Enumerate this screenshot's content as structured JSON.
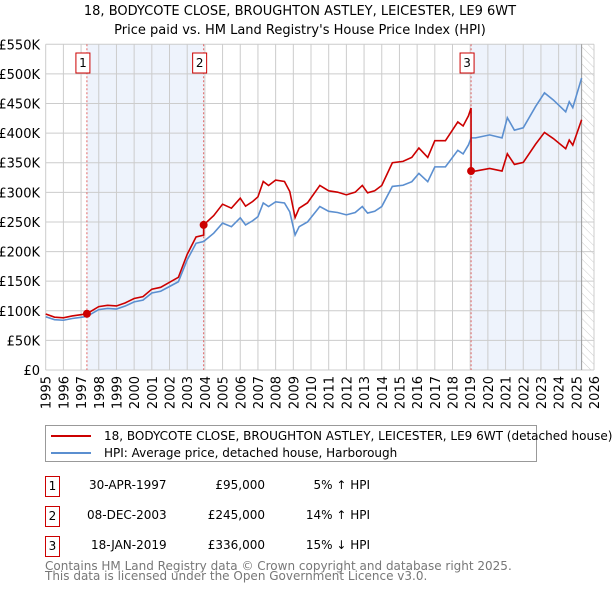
{
  "chart_data": {
    "type": "line",
    "title": "18, BODYCOTE CLOSE, BROUGHTON ASTLEY, LEICESTER, LE9 6WT",
    "subtitle": "Price paid vs. HM Land Registry's House Price Index (HPI)",
    "xlim": [
      1995,
      2026
    ],
    "ylim": [
      0,
      550000
    ],
    "y_ticks": [
      {
        "v": 0,
        "label": "£0"
      },
      {
        "v": 50000,
        "label": "£50K"
      },
      {
        "v": 100000,
        "label": "£100K"
      },
      {
        "v": 150000,
        "label": "£150K"
      },
      {
        "v": 200000,
        "label": "£200K"
      },
      {
        "v": 250000,
        "label": "£250K"
      },
      {
        "v": 300000,
        "label": "£300K"
      },
      {
        "v": 350000,
        "label": "£350K"
      },
      {
        "v": 400000,
        "label": "£400K"
      },
      {
        "v": 450000,
        "label": "£450K"
      },
      {
        "v": 500000,
        "label": "£500K"
      },
      {
        "v": 550000,
        "label": "£550K"
      }
    ],
    "x_ticks": [
      "1995",
      "1996",
      "1997",
      "1998",
      "1999",
      "2000",
      "2001",
      "2002",
      "2003",
      "2004",
      "2005",
      "2006",
      "2007",
      "2008",
      "2009",
      "2010",
      "2011",
      "2012",
      "2013",
      "2014",
      "2015",
      "2016",
      "2017",
      "2018",
      "2019",
      "2020",
      "2021",
      "2022",
      "2023",
      "2024",
      "2025",
      "2026"
    ],
    "grid": true,
    "data_end": 2025.3,
    "colors": {
      "property": "#cc0000",
      "hpi": "#5b8fd0",
      "shade": "#eef3fc"
    },
    "hpi": {
      "name": "HPI: Average price, detached house, Harborough",
      "points": [
        [
          1995,
          90
        ],
        [
          1995.5,
          85
        ],
        [
          1996,
          84
        ],
        [
          1996.5,
          87
        ],
        [
          1997,
          89
        ],
        [
          1997.33,
          90.5
        ],
        [
          1998,
          102
        ],
        [
          1998.5,
          104
        ],
        [
          1999,
          103
        ],
        [
          1999.5,
          108
        ],
        [
          2000,
          115
        ],
        [
          2000.5,
          118
        ],
        [
          2001,
          130
        ],
        [
          2001.5,
          133
        ],
        [
          2002,
          141
        ],
        [
          2002.5,
          149
        ],
        [
          2003,
          186
        ],
        [
          2003.5,
          214
        ],
        [
          2003.93,
          217
        ],
        [
          2004.5,
          231
        ],
        [
          2005,
          248
        ],
        [
          2005.5,
          242
        ],
        [
          2006,
          257
        ],
        [
          2006.3,
          245
        ],
        [
          2006.7,
          252
        ],
        [
          2007,
          259
        ],
        [
          2007.3,
          282
        ],
        [
          2007.6,
          276
        ],
        [
          2008,
          284
        ],
        [
          2008.5,
          282
        ],
        [
          2008.8,
          267
        ],
        [
          2009.1,
          228
        ],
        [
          2009.33,
          242
        ],
        [
          2009.8,
          250
        ],
        [
          2010.5,
          276
        ],
        [
          2011,
          268
        ],
        [
          2011.5,
          266
        ],
        [
          2012,
          262
        ],
        [
          2012.5,
          266
        ],
        [
          2012.9,
          276
        ],
        [
          2013.2,
          265
        ],
        [
          2013.6,
          268
        ],
        [
          2014,
          276
        ],
        [
          2014.6,
          310
        ],
        [
          2015.2,
          312
        ],
        [
          2015.7,
          318
        ],
        [
          2016.1,
          332
        ],
        [
          2016.6,
          318
        ],
        [
          2017,
          343
        ],
        [
          2017.6,
          343
        ],
        [
          2018.3,
          371
        ],
        [
          2018.6,
          365
        ],
        [
          2018.9,
          380
        ],
        [
          2019.05,
          392
        ],
        [
          2019.3,
          392
        ],
        [
          2020.1,
          397
        ],
        [
          2020.8,
          392
        ],
        [
          2021.1,
          426
        ],
        [
          2021.5,
          405
        ],
        [
          2022,
          409
        ],
        [
          2022.7,
          445
        ],
        [
          2023.2,
          468
        ],
        [
          2023.7,
          456
        ],
        [
          2024.4,
          436
        ],
        [
          2024.6,
          453
        ],
        [
          2024.8,
          443
        ],
        [
          2025.3,
          493
        ]
      ]
    },
    "property": {
      "name": "18, BODYCOTE CLOSE, BROUGHTON ASTLEY, LEICESTER, LE9 6WT (detached house)"
    },
    "sales": [
      {
        "n": "1",
        "date": "30-APR-1997",
        "t": 1997.33,
        "price": 95000,
        "price_label": "£95,000",
        "hpi_delta": "5% ↑ HPI"
      },
      {
        "n": "2",
        "date": "08-DEC-2003",
        "t": 2003.93,
        "price": 245000,
        "price_label": "£245,000",
        "hpi_delta": "14% ↑ HPI"
      },
      {
        "n": "3",
        "date": "18-JAN-2019",
        "t": 2019.05,
        "price": 336000,
        "price_label": "£336,000",
        "hpi_delta": "15% ↓ HPI"
      }
    ]
  },
  "footer": {
    "line1": "Contains HM Land Registry data © Crown copyright and database right 2025.",
    "line2": "This data is licensed under the Open Government Licence v3.0."
  }
}
